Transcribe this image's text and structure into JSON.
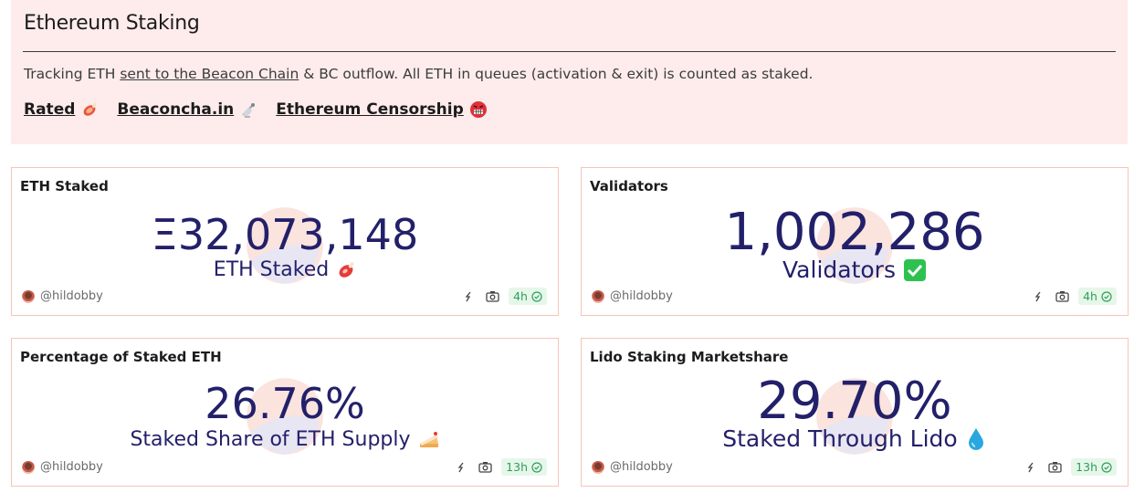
{
  "header": {
    "title": "Ethereum Staking",
    "desc_prefix": "Tracking ETH ",
    "desc_link": "sent to the Beacon Chain",
    "desc_suffix": " & BC outflow. All ETH in queues (activation & exit) is counted as staked.",
    "links": [
      {
        "label": "Rated",
        "icon": "meat-icon"
      },
      {
        "label": "Beaconcha.in",
        "icon": "satellite-icon"
      },
      {
        "label": "Ethereum Censorship",
        "icon": "angry-face-icon"
      }
    ]
  },
  "cards": [
    {
      "title": "ETH Staked",
      "value": "Ξ32,073,148",
      "label": "ETH Staked",
      "icon": "meat-icon",
      "author": "@hildobby",
      "age": "4h"
    },
    {
      "title": "Validators",
      "value": "1,002,286",
      "label": "Validators",
      "icon": "check-box-icon",
      "author": "@hildobby",
      "age": "4h"
    },
    {
      "title": "Percentage of Staked ETH",
      "value": "26.76%",
      "label": "Staked Share of ETH Supply",
      "icon": "cake-icon",
      "author": "@hildobby",
      "age": "13h"
    },
    {
      "title": "Lido Staking Marketshare",
      "value": "29.70%",
      "label": "Staked Through Lido",
      "icon": "droplet-icon",
      "author": "@hildobby",
      "age": "13h"
    }
  ],
  "colors": {
    "header_bg": "#fdeceb",
    "card_border": "#f5c5b8",
    "value_text": "#23206a",
    "badge_bg": "#e6f7ea",
    "badge_text": "#2f9e5b"
  }
}
